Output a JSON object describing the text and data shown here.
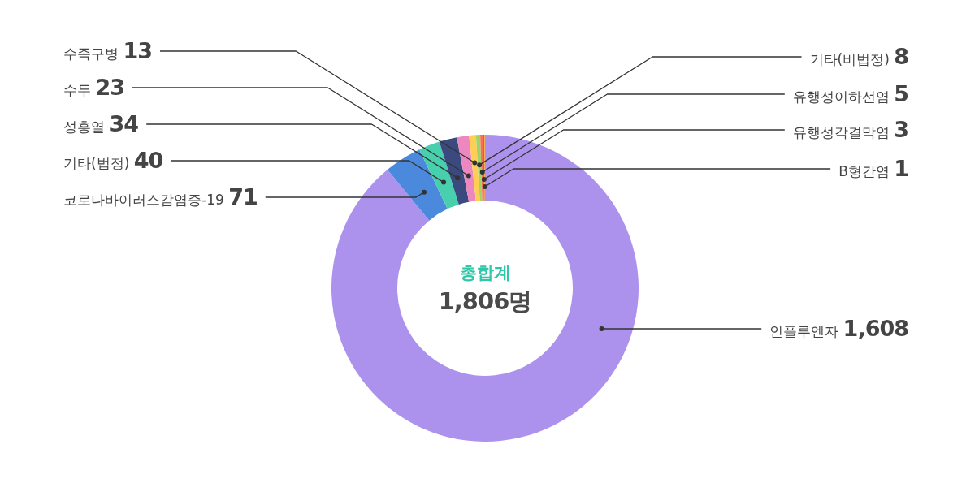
{
  "chart_data": {
    "type": "donut",
    "title": "총합계",
    "subtitle": "1,806명",
    "categories": [
      "인플루엔자",
      "코로나바이러스감염증-19",
      "기타(법정)",
      "성홍열",
      "수두",
      "수족구병",
      "기타(비법정)",
      "유행성이하선염",
      "유행성각결막염",
      "B형간염"
    ],
    "values": [
      1608,
      71,
      40,
      34,
      23,
      13,
      8,
      5,
      3,
      1
    ],
    "colors": [
      "#ac92ec",
      "#4a89dc",
      "#48cfad",
      "#3a4a7e",
      "#ec87c0",
      "#ffce54",
      "#a0d468",
      "#fc6e51",
      "#e9573f",
      "#f6a623"
    ],
    "value_labels": [
      "1,608",
      "71",
      "40",
      "34",
      "23",
      "13",
      "8",
      "5",
      "3",
      "1"
    ]
  }
}
